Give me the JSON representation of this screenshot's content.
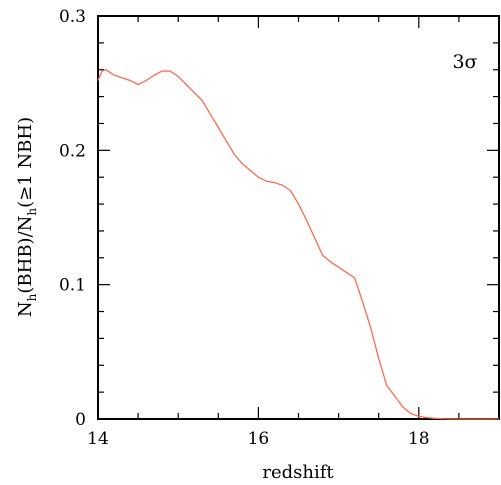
{
  "chart_data": {
    "type": "line",
    "title": "",
    "xlabel": "redshift",
    "ylabel": "",
    "ylabel_parts": {
      "p1": "N",
      "s1": "h",
      "p2": "(BHB)/N",
      "s2": "h",
      "p3": "(≥1  NBH)"
    },
    "annotation": "3σ",
    "xlim": [
      14,
      19
    ],
    "ylim": [
      0,
      0.3
    ],
    "x_ticks": [
      14,
      16,
      18
    ],
    "x_tick_labels": [
      "14",
      "16",
      "18"
    ],
    "y_ticks": [
      0,
      0.1,
      0.2,
      0.3
    ],
    "y_tick_labels": [
      "0",
      "0.1",
      "0.2",
      "0.3"
    ],
    "grid": false,
    "series": [
      {
        "color": "#ff6a50",
        "x": [
          14.0,
          14.05,
          14.1,
          14.15,
          14.2,
          14.3,
          14.4,
          14.5,
          14.6,
          14.7,
          14.8,
          14.9,
          15.0,
          15.1,
          15.2,
          15.3,
          15.4,
          15.5,
          15.6,
          15.7,
          15.8,
          15.9,
          16.0,
          16.1,
          16.2,
          16.3,
          16.4,
          16.5,
          16.6,
          16.7,
          16.8,
          16.9,
          17.0,
          17.1,
          17.2,
          17.3,
          17.4,
          17.5,
          17.6,
          17.7,
          17.8,
          17.9,
          18.0,
          18.1,
          18.2,
          18.3,
          18.5,
          18.7,
          19.0
        ],
        "y": [
          0.252,
          0.259,
          0.26,
          0.258,
          0.256,
          0.254,
          0.252,
          0.249,
          0.252,
          0.256,
          0.259,
          0.259,
          0.255,
          0.249,
          0.243,
          0.237,
          0.227,
          0.217,
          0.207,
          0.197,
          0.19,
          0.185,
          0.18,
          0.177,
          0.176,
          0.174,
          0.17,
          0.16,
          0.148,
          0.135,
          0.122,
          0.117,
          0.113,
          0.109,
          0.105,
          0.087,
          0.068,
          0.045,
          0.025,
          0.017,
          0.009,
          0.004,
          0.002,
          0.001,
          0.0005,
          0.0002,
          0.0,
          0.0,
          0.0
        ]
      }
    ]
  }
}
